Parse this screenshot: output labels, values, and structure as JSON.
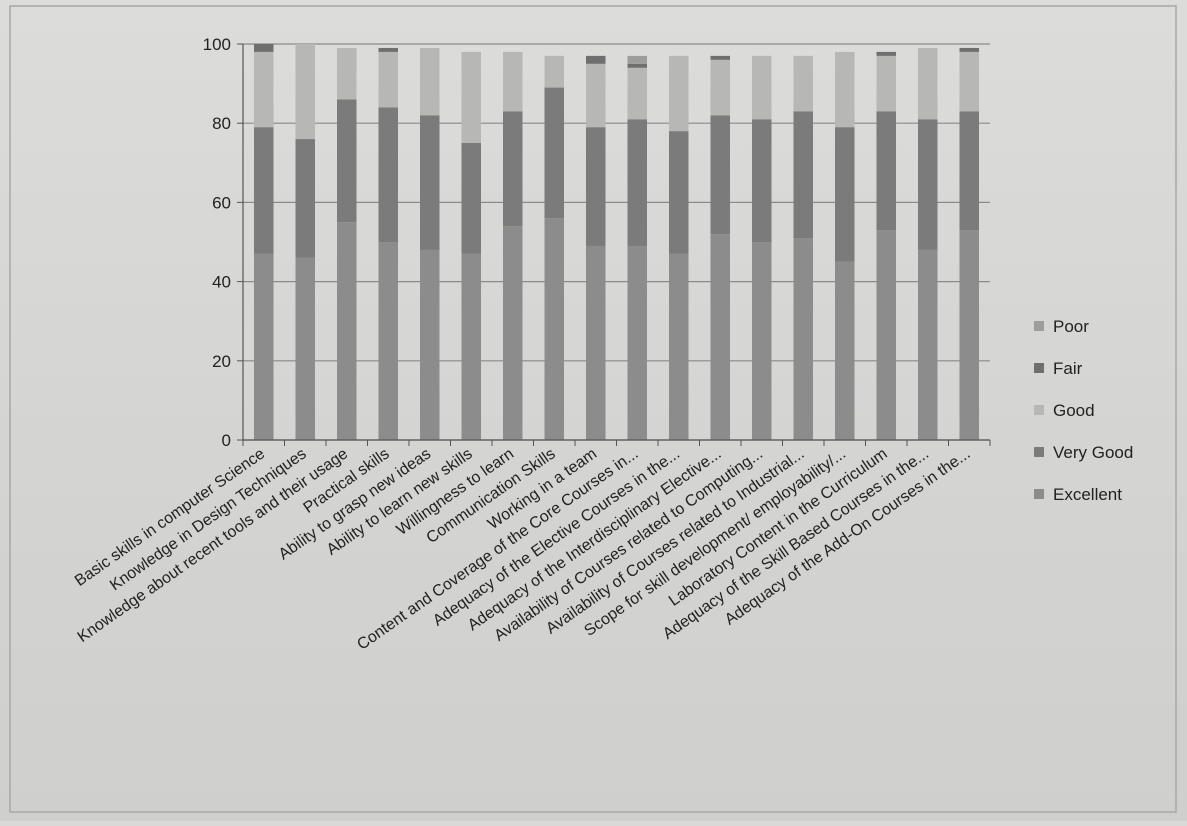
{
  "chart_data": {
    "type": "bar",
    "stacked": true,
    "title": "",
    "xlabel": "",
    "ylabel": "",
    "ylim": [
      0,
      100
    ],
    "yticks": [
      0,
      20,
      40,
      60,
      80,
      100
    ],
    "grid": true,
    "legend_position": "right",
    "categories": [
      "Basic skills in  computer Science",
      "Knowledge in Design Techniques",
      "Knowledge about recent tools and their usage",
      "Practical skills",
      "Ability to grasp new ideas",
      "Ability to learn new skills",
      "Willingness to learn",
      "Communication Skills",
      "Working in a team",
      "Content and Coverage of the Core Courses in...",
      "Adequacy of the Elective Courses in the...",
      "Adequacy of the Interdisciplinary Elective...",
      "Availability of Courses related to Computing...",
      "Availability of Courses related to Industrial...",
      "Scope for skill development/ employability/...",
      "Laboratory Content in the Curriculum",
      "Adequacy of the Skill Based Courses in the...",
      "Adequacy of the Add-On Courses in the..."
    ],
    "series": [
      {
        "name": "Excellent",
        "color": "#8c8c8c",
        "values": [
          47,
          46,
          55,
          50,
          48,
          47,
          54,
          56,
          49,
          49,
          47,
          52,
          50,
          51,
          45,
          53,
          48,
          53
        ]
      },
      {
        "name": "Very Good",
        "color": "#7b7b7b",
        "values": [
          32,
          30,
          31,
          34,
          34,
          28,
          29,
          33,
          30,
          32,
          31,
          30,
          31,
          32,
          34,
          30,
          33,
          30
        ]
      },
      {
        "name": "Good",
        "color": "#b7b7b5",
        "values": [
          19,
          24,
          13,
          14,
          17,
          23,
          15,
          8,
          16,
          13,
          19,
          14,
          16,
          14,
          19,
          14,
          18,
          15
        ]
      },
      {
        "name": "Fair",
        "color": "#6f6f6f",
        "values": [
          2,
          0,
          0,
          1,
          0,
          0,
          0,
          0,
          2,
          1,
          0,
          1,
          0,
          0,
          0,
          1,
          0,
          1
        ]
      },
      {
        "name": "Poor",
        "color": "#9d9d9b",
        "values": [
          0,
          0,
          0,
          0,
          0,
          0,
          0,
          0,
          0,
          2,
          0,
          0,
          0,
          0,
          0,
          0,
          0,
          0
        ]
      }
    ],
    "legend_order": [
      "Poor",
      "Fair",
      "Good",
      "Very Good",
      "Excellent"
    ]
  }
}
